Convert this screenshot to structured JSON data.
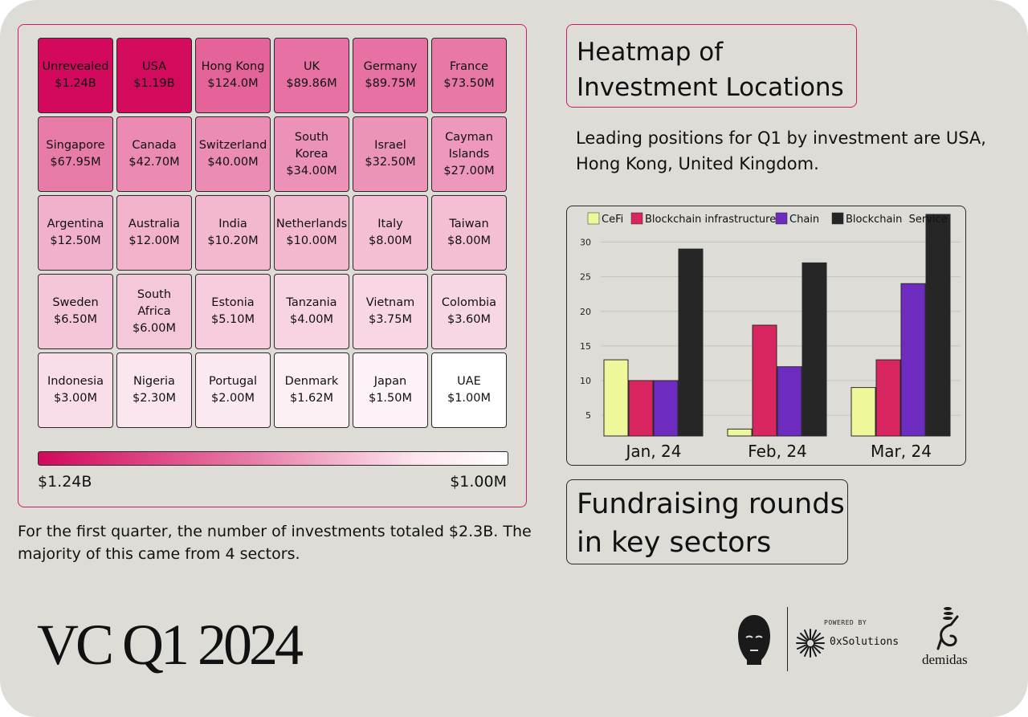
{
  "heatmap": {
    "cells": [
      {
        "name": "Unrevealed",
        "value": "$1.24B",
        "raw": 1240
      },
      {
        "name": "USA",
        "value": "$1.19B",
        "raw": 1190
      },
      {
        "name": "Hong Kong",
        "value": "$124.0M",
        "raw": 124.0
      },
      {
        "name": "UK",
        "value": "$89.86M",
        "raw": 89.86
      },
      {
        "name": "Germany",
        "value": "$89.75M",
        "raw": 89.75
      },
      {
        "name": "France",
        "value": "$73.50M",
        "raw": 73.5
      },
      {
        "name": "Singapore",
        "value": "$67.95M",
        "raw": 67.95
      },
      {
        "name": "Canada",
        "value": "$42.70M",
        "raw": 42.7
      },
      {
        "name": "Switzerland",
        "value": "$40.00M",
        "raw": 40.0
      },
      {
        "name": "South Korea",
        "value": "$34.00M",
        "raw": 34.0
      },
      {
        "name": "Israel",
        "value": "$32.50M",
        "raw": 32.5
      },
      {
        "name": "Cayman Islands",
        "value": "$27.00M",
        "raw": 27.0
      },
      {
        "name": "Argentina",
        "value": "$12.50M",
        "raw": 12.5
      },
      {
        "name": "Australia",
        "value": "$12.00M",
        "raw": 12.0
      },
      {
        "name": "India",
        "value": "$10.20M",
        "raw": 10.2
      },
      {
        "name": "Netherlands",
        "value": "$10.00M",
        "raw": 10.0
      },
      {
        "name": "Italy",
        "value": "$8.00M",
        "raw": 8.0
      },
      {
        "name": "Taiwan",
        "value": "$8.00M",
        "raw": 8.0
      },
      {
        "name": "Sweden",
        "value": "$6.50M",
        "raw": 6.5
      },
      {
        "name": "South Africa",
        "value": "$6.00M",
        "raw": 6.0
      },
      {
        "name": "Estonia",
        "value": "$5.10M",
        "raw": 5.1
      },
      {
        "name": "Tanzania",
        "value": "$4.00M",
        "raw": 4.0
      },
      {
        "name": "Vietnam",
        "value": "$3.75M",
        "raw": 3.75
      },
      {
        "name": "Colombia",
        "value": "$3.60M",
        "raw": 3.6
      },
      {
        "name": "Indonesia",
        "value": "$3.00M",
        "raw": 3.0
      },
      {
        "name": "Nigeria",
        "value": "$2.30M",
        "raw": 2.3
      },
      {
        "name": "Portugal",
        "value": "$2.00M",
        "raw": 2.0
      },
      {
        "name": "Denmark",
        "value": "$1.62M",
        "raw": 1.62
      },
      {
        "name": "Japan",
        "value": "$1.50M",
        "raw": 1.5
      },
      {
        "name": "UAE",
        "value": "$1.00M",
        "raw": 1.0
      }
    ],
    "legend_max_label": "$1.24B",
    "legend_min_label": "$1.00M",
    "colors": {
      "high": "#d2095c",
      "low": "#ffffff"
    }
  },
  "note": "For the first quarter, the number of investments totaled $2.3B. The majority of this came from 4 sectors.",
  "heatmap_title": "Heatmap of Investment Locations",
  "description": "Leading positions for Q1 by investment are USA, Hong Kong, United Kingdom.",
  "sector_title": "Fundraising rounds in key sectors",
  "main_title": "VC Q1 2024",
  "logos": {
    "powered_by": "POWERED BY",
    "oxsolutions": "0xSolutions",
    "demidas": "demidas"
  },
  "chart_data": {
    "type": "bar",
    "categories": [
      "Jan, 24",
      "Feb, 24",
      "Mar, 24"
    ],
    "series": [
      {
        "name": "CeFi",
        "color": "#eef79a",
        "values": [
          13,
          3,
          9
        ]
      },
      {
        "name": "Blockchain infrastructure",
        "color": "#d92560",
        "values": [
          10,
          18,
          13
        ]
      },
      {
        "name": "Chain",
        "color": "#6e2bc0",
        "values": [
          10,
          12,
          24
        ]
      },
      {
        "name": "Blockchain  Service",
        "color": "#262626",
        "values": [
          29,
          27,
          34
        ]
      }
    ],
    "yticks": [
      5,
      10,
      15,
      20,
      25,
      30
    ],
    "ylim": [
      2,
      34
    ],
    "grid": true,
    "legend": "top"
  }
}
